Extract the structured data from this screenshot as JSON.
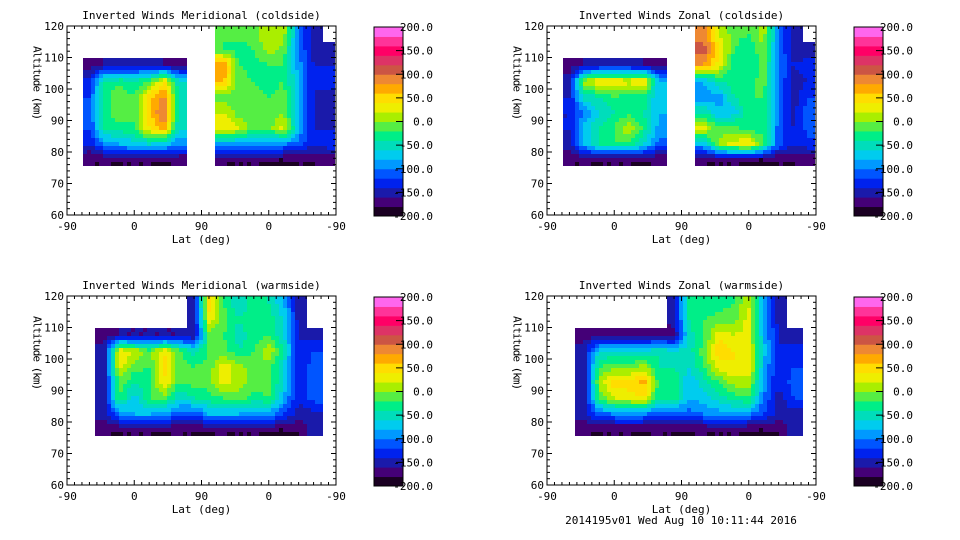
{
  "footer": "2014195v01 Wed Aug 10 10:11:44 2016",
  "colorbar": {
    "min": -200,
    "max": 200,
    "step": 20,
    "labels": [
      "200.0",
      "150.0",
      "100.0",
      "50.0",
      "0.0",
      "-50.0",
      "-100.0",
      "-150.0",
      "-200.0"
    ],
    "colors": [
      "#1a0022",
      "#440077",
      "#1a1aaa",
      "#0022ee",
      "#0055ff",
      "#0099ff",
      "#00ccee",
      "#00ddbb",
      "#00ee88",
      "#55ee44",
      "#aaee00",
      "#eeee00",
      "#ffdd00",
      "#ffaa00",
      "#ee8833",
      "#cc5544",
      "#dd3366",
      "#ff0066",
      "#ff3399",
      "#ff66ee"
    ]
  },
  "chart_data": [
    {
      "type": "heatmap",
      "title": "Inverted Winds Meridional (coldside)",
      "xlabel": "Lat (deg)",
      "ylabel": "Altitude (km)",
      "x_tick_labels": [
        "-90",
        "0",
        "90",
        "0",
        "-90"
      ],
      "y_tick_labels": [
        "60",
        "70",
        "80",
        "90",
        "100",
        "110",
        "120"
      ],
      "ylim": [
        60,
        120
      ],
      "x_cells_deg_along_orbit": 20,
      "y_cells_km": 5,
      "grid": [
        [
          null,
          null,
          null,
          null,
          null,
          null,
          null,
          null,
          null,
          null,
          -20,
          -10,
          -10,
          20,
          10,
          -100,
          -150,
          null
        ],
        [
          null,
          null,
          null,
          null,
          null,
          null,
          null,
          null,
          null,
          null,
          -20,
          -30,
          -20,
          10,
          -10,
          -100,
          -150,
          -150
        ],
        [
          null,
          -170,
          -160,
          -150,
          -150,
          -150,
          -160,
          -170,
          null,
          null,
          80,
          -20,
          -30,
          -20,
          -20,
          -90,
          -140,
          -140
        ],
        [
          null,
          -130,
          -40,
          -30,
          -40,
          -20,
          40,
          -60,
          null,
          null,
          60,
          -10,
          -20,
          -30,
          -20,
          -80,
          -140,
          -130
        ],
        [
          null,
          -120,
          -30,
          0,
          -20,
          50,
          90,
          -50,
          null,
          null,
          -10,
          -10,
          -10,
          -20,
          -10,
          -80,
          -140,
          -150
        ],
        [
          null,
          -120,
          -30,
          0,
          -20,
          50,
          110,
          -60,
          null,
          null,
          20,
          -10,
          -10,
          -10,
          0,
          -80,
          -140,
          -150
        ],
        [
          null,
          -120,
          -40,
          -30,
          -20,
          40,
          70,
          -60,
          null,
          null,
          40,
          20,
          -10,
          -10,
          30,
          -80,
          -140,
          -140
        ],
        [
          null,
          -140,
          -90,
          -80,
          -70,
          -60,
          -70,
          -100,
          null,
          null,
          -90,
          -90,
          -90,
          -90,
          -100,
          -110,
          -140,
          -130
        ],
        [
          null,
          -180,
          -180,
          -180,
          -180,
          -180,
          -180,
          -180,
          null,
          null,
          -180,
          -180,
          -180,
          -180,
          -180,
          -180,
          -180,
          -170
        ],
        [
          null,
          null,
          null,
          null,
          null,
          null,
          null,
          null,
          null,
          null,
          null,
          null,
          null,
          null,
          null,
          null,
          null,
          null
        ],
        [
          null,
          null,
          null,
          null,
          null,
          null,
          null,
          null,
          null,
          null,
          null,
          null,
          null,
          null,
          null,
          null,
          null,
          null
        ],
        [
          null,
          null,
          null,
          null,
          null,
          null,
          null,
          null,
          null,
          null,
          null,
          null,
          null,
          null,
          null,
          null,
          null,
          null
        ]
      ]
    },
    {
      "type": "heatmap",
      "title": "Inverted Winds Zonal (coldside)",
      "xlabel": "Lat (deg)",
      "ylabel": "Altitude (km)",
      "x_tick_labels": [
        "-90",
        "0",
        "90",
        "0",
        "-90"
      ],
      "y_tick_labels": [
        "60",
        "70",
        "80",
        "90",
        "100",
        "110",
        "120"
      ],
      "ylim": [
        60,
        120
      ],
      "x_cells_deg_along_orbit": 20,
      "y_cells_km": 5,
      "grid": [
        [
          null,
          null,
          null,
          null,
          null,
          null,
          null,
          null,
          null,
          null,
          90,
          20,
          -10,
          -20,
          10,
          -100,
          -150,
          null
        ],
        [
          null,
          null,
          null,
          null,
          null,
          null,
          null,
          null,
          null,
          null,
          110,
          50,
          -20,
          -40,
          0,
          -100,
          -150,
          -150
        ],
        [
          null,
          -170,
          -160,
          -150,
          -150,
          -150,
          -160,
          -170,
          null,
          null,
          80,
          30,
          -30,
          -40,
          -10,
          -100,
          -140,
          -130
        ],
        [
          null,
          -150,
          10,
          40,
          40,
          30,
          50,
          -80,
          null,
          null,
          -80,
          -40,
          -30,
          -30,
          -10,
          -100,
          -150,
          -140
        ],
        [
          null,
          -140,
          -50,
          -40,
          -20,
          -30,
          -30,
          -80,
          null,
          null,
          -90,
          -90,
          -40,
          -20,
          -20,
          -100,
          -150,
          -120
        ],
        [
          null,
          -140,
          -100,
          -60,
          -40,
          -30,
          -40,
          -80,
          null,
          null,
          -40,
          -80,
          -70,
          -30,
          -20,
          -100,
          -150,
          -100
        ],
        [
          null,
          -140,
          -70,
          -40,
          -20,
          20,
          -30,
          -90,
          null,
          null,
          30,
          -20,
          -10,
          -30,
          -30,
          -110,
          -140,
          -110
        ],
        [
          null,
          -150,
          -80,
          -40,
          -20,
          -30,
          -60,
          -110,
          null,
          null,
          -80,
          10,
          30,
          40,
          -20,
          -110,
          -140,
          -130
        ],
        [
          null,
          -180,
          -180,
          -180,
          -180,
          -180,
          -180,
          -180,
          null,
          null,
          -180,
          -180,
          -180,
          -180,
          -180,
          -180,
          -180,
          -170
        ],
        [
          null,
          null,
          null,
          null,
          null,
          null,
          null,
          null,
          null,
          null,
          null,
          null,
          null,
          null,
          null,
          null,
          null,
          null
        ],
        [
          null,
          null,
          null,
          null,
          null,
          null,
          null,
          null,
          null,
          null,
          null,
          null,
          null,
          null,
          null,
          null,
          null,
          null
        ],
        [
          null,
          null,
          null,
          null,
          null,
          null,
          null,
          null,
          null,
          null,
          null,
          null,
          null,
          null,
          null,
          null,
          null,
          null
        ]
      ]
    },
    {
      "type": "heatmap",
      "title": "Inverted Winds Meridional (warmside)",
      "xlabel": "Lat (deg)",
      "ylabel": "Altitude (km)",
      "x_tick_labels": [
        "-90",
        "0",
        "90",
        "0",
        "-90"
      ],
      "y_tick_labels": [
        "60",
        "70",
        "80",
        "90",
        "100",
        "110",
        "120"
      ],
      "ylim": [
        60,
        120
      ],
      "x_cells_deg_along_orbit": 20,
      "y_cells_km": 5,
      "grid": [
        [
          null,
          null,
          null,
          null,
          null,
          null,
          null,
          null,
          -150,
          50,
          -20,
          -60,
          -30,
          -40,
          -80,
          -150,
          null,
          null
        ],
        [
          null,
          null,
          null,
          null,
          null,
          null,
          null,
          null,
          -150,
          30,
          -10,
          -40,
          -20,
          -30,
          -60,
          -150,
          null,
          null
        ],
        [
          null,
          null,
          -170,
          -160,
          -160,
          -160,
          -160,
          -160,
          -160,
          -10,
          -20,
          -50,
          -30,
          -20,
          -60,
          -140,
          -150,
          null
        ],
        [
          null,
          null,
          -150,
          40,
          20,
          -10,
          40,
          -10,
          -50,
          -20,
          -10,
          -40,
          -20,
          20,
          -40,
          -140,
          -120,
          null
        ],
        [
          null,
          null,
          -150,
          30,
          -10,
          -20,
          50,
          -10,
          -20,
          -10,
          30,
          10,
          -10,
          -10,
          -60,
          -140,
          -110,
          null
        ],
        [
          null,
          null,
          -150,
          -10,
          -40,
          -30,
          40,
          -20,
          -10,
          -10,
          30,
          10,
          -10,
          -10,
          -60,
          -140,
          -100,
          null
        ],
        [
          null,
          null,
          -150,
          -20,
          -70,
          -20,
          -10,
          -60,
          -40,
          -30,
          -20,
          -10,
          -30,
          -20,
          -80,
          -140,
          -110,
          null
        ],
        [
          null,
          null,
          -150,
          -100,
          -80,
          -80,
          -90,
          -110,
          -120,
          -80,
          -80,
          -80,
          -90,
          -90,
          -120,
          -150,
          -150,
          null
        ],
        [
          null,
          null,
          -180,
          -180,
          -180,
          -180,
          -180,
          -180,
          -180,
          -180,
          -180,
          -180,
          -180,
          -180,
          -180,
          -180,
          -150,
          null
        ],
        [
          null,
          null,
          null,
          null,
          null,
          null,
          null,
          null,
          null,
          null,
          null,
          null,
          null,
          null,
          null,
          null,
          null,
          null
        ],
        [
          null,
          null,
          null,
          null,
          null,
          null,
          null,
          null,
          null,
          null,
          null,
          null,
          null,
          null,
          null,
          null,
          null,
          null
        ],
        [
          null,
          null,
          null,
          null,
          null,
          null,
          null,
          null,
          null,
          null,
          null,
          null,
          null,
          null,
          null,
          null,
          null,
          null
        ]
      ]
    },
    {
      "type": "heatmap",
      "title": "Inverted Winds Zonal (warmside)",
      "xlabel": "Lat (deg)",
      "ylabel": "Altitude (km)",
      "x_tick_labels": [
        "-90",
        "0",
        "90",
        "0",
        "-90"
      ],
      "y_tick_labels": [
        "60",
        "70",
        "80",
        "90",
        "100",
        "110",
        "120"
      ],
      "ylim": [
        60,
        120
      ],
      "x_cells_deg_along_orbit": 20,
      "y_cells_km": 5,
      "grid": [
        [
          null,
          null,
          null,
          null,
          null,
          null,
          null,
          null,
          -150,
          -40,
          -40,
          -30,
          -20,
          20,
          -80,
          -150,
          null,
          null
        ],
        [
          null,
          null,
          null,
          null,
          null,
          null,
          null,
          null,
          -150,
          -40,
          -20,
          -10,
          -10,
          30,
          -80,
          -150,
          null,
          null
        ],
        [
          null,
          null,
          -170,
          -170,
          -170,
          -170,
          -170,
          -170,
          -170,
          -50,
          -20,
          30,
          20,
          30,
          -80,
          -140,
          -150,
          null
        ],
        [
          null,
          null,
          -150,
          -60,
          -60,
          -60,
          -60,
          -40,
          -60,
          -50,
          -10,
          60,
          40,
          30,
          -70,
          -140,
          -130,
          null
        ],
        [
          null,
          null,
          -150,
          -20,
          -10,
          -10,
          10,
          -40,
          -40,
          -60,
          -20,
          30,
          40,
          40,
          -80,
          -140,
          -120,
          null
        ],
        [
          null,
          null,
          -150,
          10,
          50,
          50,
          70,
          -30,
          -20,
          -80,
          -50,
          -20,
          10,
          10,
          -90,
          -140,
          -110,
          null
        ],
        [
          null,
          null,
          -150,
          -20,
          20,
          30,
          40,
          -40,
          -20,
          -80,
          -70,
          -50,
          -30,
          -20,
          -100,
          -150,
          -120,
          null
        ],
        [
          null,
          null,
          -150,
          -110,
          -100,
          -100,
          -100,
          -110,
          -120,
          -110,
          -100,
          -90,
          -90,
          -100,
          -120,
          -150,
          -150,
          null
        ],
        [
          null,
          null,
          -180,
          -180,
          -180,
          -180,
          -180,
          -180,
          -180,
          -180,
          -180,
          -180,
          -180,
          -180,
          -180,
          -180,
          -150,
          null
        ],
        [
          null,
          null,
          null,
          null,
          null,
          null,
          null,
          null,
          null,
          null,
          null,
          null,
          null,
          null,
          null,
          null,
          null,
          null
        ],
        [
          null,
          null,
          null,
          null,
          null,
          null,
          null,
          null,
          null,
          null,
          null,
          null,
          null,
          null,
          null,
          null,
          null,
          null
        ],
        [
          null,
          null,
          null,
          null,
          null,
          null,
          null,
          null,
          null,
          null,
          null,
          null,
          null,
          null,
          null,
          null,
          null,
          null
        ]
      ]
    }
  ]
}
